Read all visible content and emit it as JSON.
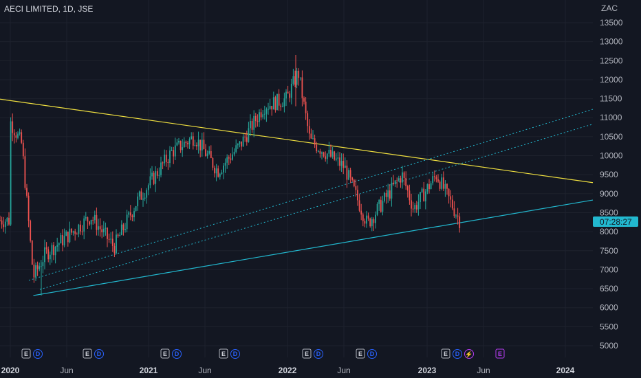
{
  "header": {
    "title": "AECI LIMITED, 1D, JSE"
  },
  "price_axis": {
    "currency": "ZAC",
    "ticks": [
      "13500",
      "13000",
      "12500",
      "12000",
      "11500",
      "11000",
      "10500",
      "10000",
      "9500",
      "9000",
      "8500",
      "8000",
      "7500",
      "7000",
      "6500",
      "6000",
      "5500",
      "5000"
    ],
    "countdown": "07:28:27"
  },
  "time_axis": {
    "ticks": [
      {
        "label": "2020",
        "major": true
      },
      {
        "label": "Jun",
        "major": false
      },
      {
        "label": "2021",
        "major": true
      },
      {
        "label": "Jun",
        "major": false
      },
      {
        "label": "2022",
        "major": true
      },
      {
        "label": "Jun",
        "major": false
      },
      {
        "label": "2023",
        "major": true
      },
      {
        "label": "Jun",
        "major": false
      },
      {
        "label": "2024",
        "major": true
      }
    ]
  },
  "event_markers": [
    {
      "E": "E",
      "D": "D"
    },
    {
      "E": "E",
      "D": "D"
    },
    {
      "E": "E",
      "D": "D"
    },
    {
      "E": "E",
      "D": "D"
    },
    {
      "E": "E",
      "D": "D"
    },
    {
      "E": "E",
      "D": "D"
    },
    {
      "E": "E",
      "D": "D",
      "S": "⚡"
    },
    {
      "E": "E",
      "purple": true
    }
  ],
  "colors": {
    "background": "#131722",
    "up": "#26a69a",
    "down": "#ef5350",
    "resistance_line": "#f0e040",
    "support_line": "#22b8cf",
    "channel_line": "#22b8cf",
    "countdown_bg": "#22b8cf"
  },
  "chart_data": {
    "type": "candlestick",
    "title": "AECI LIMITED, 1D, JSE",
    "x_axis_ticks": [
      "2020",
      "Jun",
      "2021",
      "Jun",
      "2022",
      "Jun",
      "2023",
      "Jun",
      "2024"
    ],
    "y_axis_unit": "ZAC",
    "ylim": [
      4800,
      13800
    ],
    "price_path": [
      {
        "date": "2020-01",
        "price": 10900
      },
      {
        "date": "2020-02",
        "price": 10300
      },
      {
        "date": "2020-03",
        "price": 6800
      },
      {
        "date": "2020-04",
        "price": 7400
      },
      {
        "date": "2020-06",
        "price": 7900
      },
      {
        "date": "2020-08",
        "price": 8400
      },
      {
        "date": "2020-10",
        "price": 7600
      },
      {
        "date": "2020-12",
        "price": 8800
      },
      {
        "date": "2021-03",
        "price": 10100
      },
      {
        "date": "2021-05",
        "price": 10500
      },
      {
        "date": "2021-07",
        "price": 9600
      },
      {
        "date": "2021-09",
        "price": 10300
      },
      {
        "date": "2021-11",
        "price": 11300
      },
      {
        "date": "2022-01",
        "price": 11500
      },
      {
        "date": "2022-02",
        "price": 12200
      },
      {
        "date": "2022-03",
        "price": 10400
      },
      {
        "date": "2022-06",
        "price": 9700
      },
      {
        "date": "2022-08",
        "price": 8200
      },
      {
        "date": "2022-11",
        "price": 9500
      },
      {
        "date": "2022-12",
        "price": 8600
      },
      {
        "date": "2023-02",
        "price": 9500
      },
      {
        "date": "2023-04",
        "price": 8300
      }
    ],
    "high": 12650,
    "low": 6300,
    "trendlines": [
      {
        "name": "resistance",
        "from": {
          "date": "2020-01",
          "price": 11450
        },
        "to": {
          "date": "2024-01",
          "price": 9400
        }
      },
      {
        "name": "support",
        "from": {
          "date": "2020-03",
          "price": 6320
        },
        "to": {
          "date": "2024-01",
          "price": 8700
        }
      }
    ],
    "grid": true,
    "legend": "none"
  }
}
